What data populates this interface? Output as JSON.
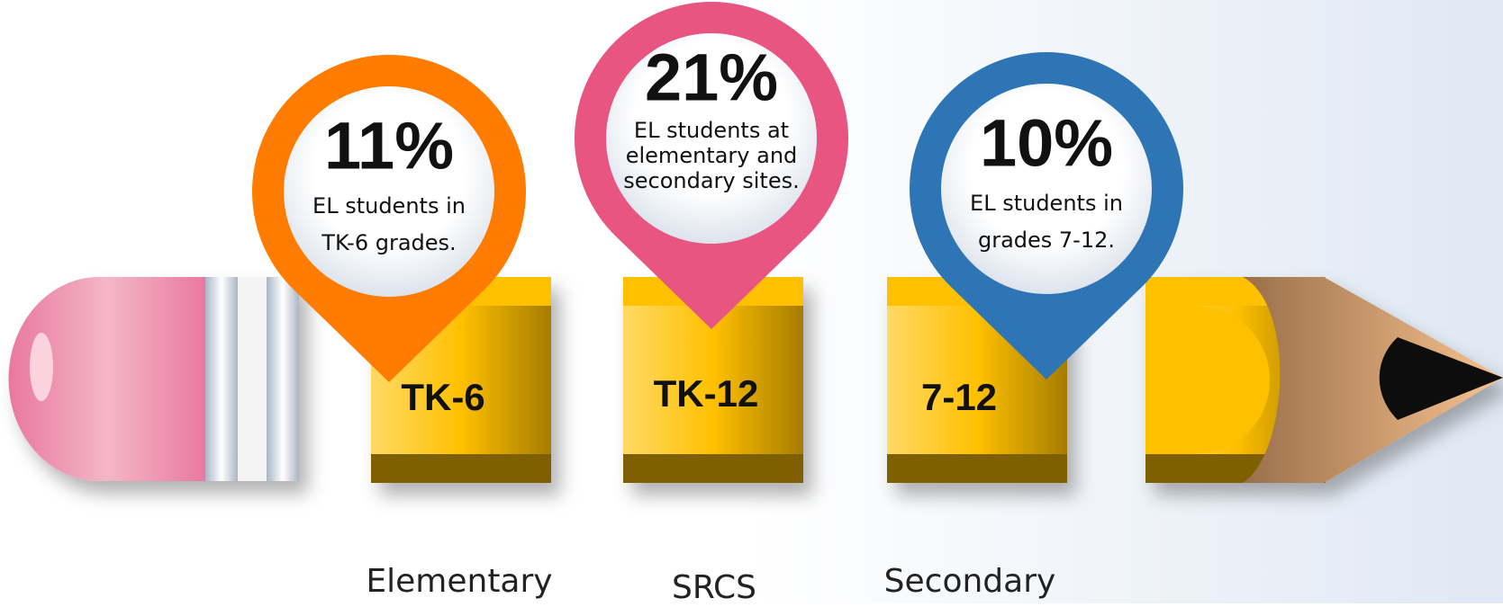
{
  "pins": [
    {
      "percent": "11%",
      "lines": [
        "EL students in",
        "TK-6 grades."
      ]
    },
    {
      "percent": "21%",
      "lines": [
        "EL students at",
        "elementary and",
        "secondary sites."
      ]
    },
    {
      "percent": "10%",
      "lines": [
        "EL students in",
        "grades 7-12."
      ]
    }
  ],
  "segments": [
    {
      "label": "TK-6",
      "caption": "Elementary"
    },
    {
      "label": "TK-12",
      "caption": "SRCS"
    },
    {
      "label": "7-12",
      "caption": "Secondary"
    }
  ]
}
